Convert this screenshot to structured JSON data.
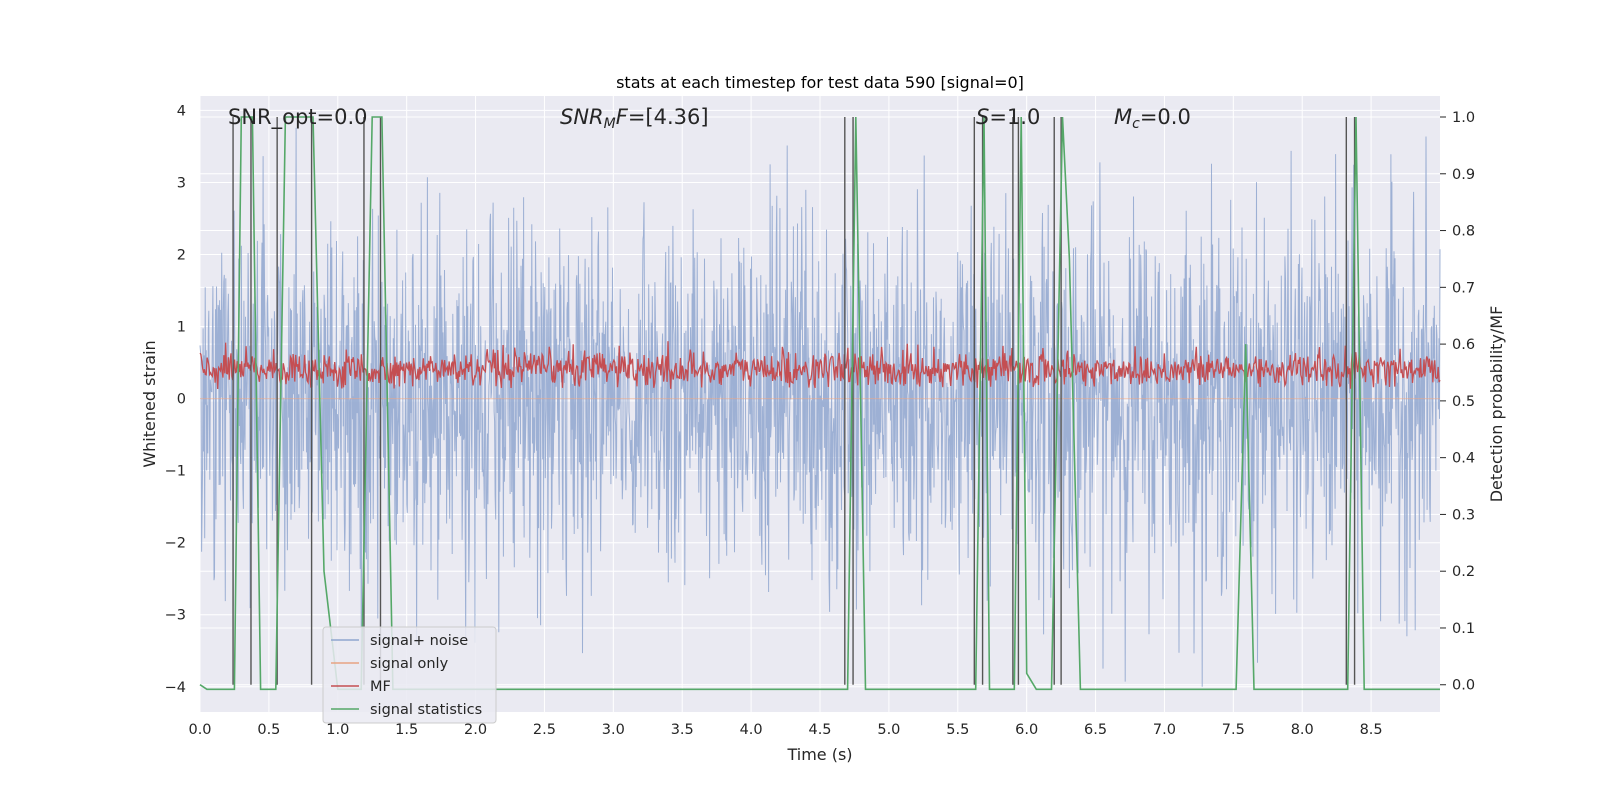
{
  "chart_data": {
    "type": "line",
    "title": "stats at each timestep for test data 590 [signal=0]",
    "xlabel": "Time (s)",
    "ylabel_left": "Whitened strain",
    "ylabel_right": "Detection probability/MF",
    "xlim": [
      0.0,
      9.0
    ],
    "ylim_left": [
      -4.35,
      4.2
    ],
    "ylim_right": [
      -0.048,
      1.037
    ],
    "x_ticks": [
      "0.0",
      "0.5",
      "1.0",
      "1.5",
      "2.0",
      "2.5",
      "3.0",
      "3.5",
      "4.0",
      "4.5",
      "5.0",
      "5.5",
      "6.0",
      "6.5",
      "7.0",
      "7.5",
      "8.0",
      "8.5"
    ],
    "y_ticks_left": [
      "−4",
      "−3",
      "−2",
      "−1",
      "0",
      "1",
      "2",
      "3",
      "4"
    ],
    "y_ticks_right": [
      "0.0",
      "0.1",
      "0.2",
      "0.3",
      "0.4",
      "0.5",
      "0.6",
      "0.7",
      "0.8",
      "0.9",
      "1.0"
    ],
    "grid": true,
    "legend_position": "lower-left",
    "annotations": {
      "snr_opt": "SNR_opt=0.0",
      "snr_mf": "=[4.36]",
      "snr_mf_label": "SNR",
      "snr_mf_sub": "M",
      "snr_mf_f": "F",
      "s_label": "S",
      "s_value": "=1.0",
      "mc_label": "M",
      "mc_sub": "c",
      "mc_value": "=0.0"
    },
    "series": [
      {
        "name": "signal+ noise",
        "color": "#8fa6cf",
        "axis": "left",
        "description_values": "whitened noise, roughly within [-4, 4]"
      },
      {
        "name": "signal only",
        "color": "#e8a383",
        "axis": "left",
        "values": "zero everywhere"
      },
      {
        "name": "MF",
        "color": "#c44e52",
        "axis": "right",
        "approx_range": [
          0.52,
          0.62
        ]
      },
      {
        "name": "signal statistics",
        "color": "#55a868",
        "axis": "right",
        "points": [
          [
            0.0,
            0.0
          ],
          [
            0.05,
            -0.008
          ],
          [
            0.25,
            -0.008
          ],
          [
            0.3,
            1.0
          ],
          [
            0.38,
            1.0
          ],
          [
            0.44,
            -0.008
          ],
          [
            0.55,
            -0.008
          ],
          [
            0.62,
            1.0
          ],
          [
            0.82,
            1.0
          ],
          [
            0.9,
            0.2
          ],
          [
            1.0,
            -0.008
          ],
          [
            1.17,
            -0.008
          ],
          [
            1.25,
            1.0
          ],
          [
            1.32,
            1.0
          ],
          [
            1.4,
            -0.008
          ],
          [
            4.7,
            -0.008
          ],
          [
            4.76,
            1.0
          ],
          [
            4.83,
            -0.008
          ],
          [
            5.63,
            -0.008
          ],
          [
            5.69,
            1.0
          ],
          [
            5.73,
            -0.008
          ],
          [
            5.91,
            -0.008
          ],
          [
            5.96,
            1.0
          ],
          [
            6.0,
            0.02
          ],
          [
            6.07,
            -0.008
          ],
          [
            6.18,
            -0.008
          ],
          [
            6.26,
            1.0
          ],
          [
            6.31,
            0.75
          ],
          [
            6.39,
            -0.008
          ],
          [
            7.52,
            -0.008
          ],
          [
            7.59,
            0.6
          ],
          [
            7.65,
            -0.008
          ],
          [
            8.33,
            -0.008
          ],
          [
            8.39,
            1.0
          ],
          [
            8.45,
            -0.008
          ],
          [
            9.0,
            -0.008
          ]
        ]
      },
      {
        "name": "event markers",
        "color": "#555555",
        "axis": "right",
        "x": [
          0.24,
          0.37,
          0.56,
          0.81,
          1.19,
          1.31,
          4.68,
          4.74,
          5.62,
          5.68,
          5.9,
          5.94,
          6.2,
          6.25,
          8.32,
          8.38
        ]
      }
    ]
  },
  "legend": {
    "items": [
      {
        "label": "signal+ noise",
        "color": "#8fa6cf"
      },
      {
        "label": "signal only",
        "color": "#e8a383"
      },
      {
        "label": "MF",
        "color": "#c44e52"
      },
      {
        "label": "signal statistics",
        "color": "#55a868"
      }
    ]
  },
  "colors": {
    "axes_bg": "#eaeaf2",
    "grid": "#ffffff",
    "noise": "#8fa6cf",
    "mf": "#c44e52",
    "stats": "#55a868",
    "markers": "#555555"
  }
}
